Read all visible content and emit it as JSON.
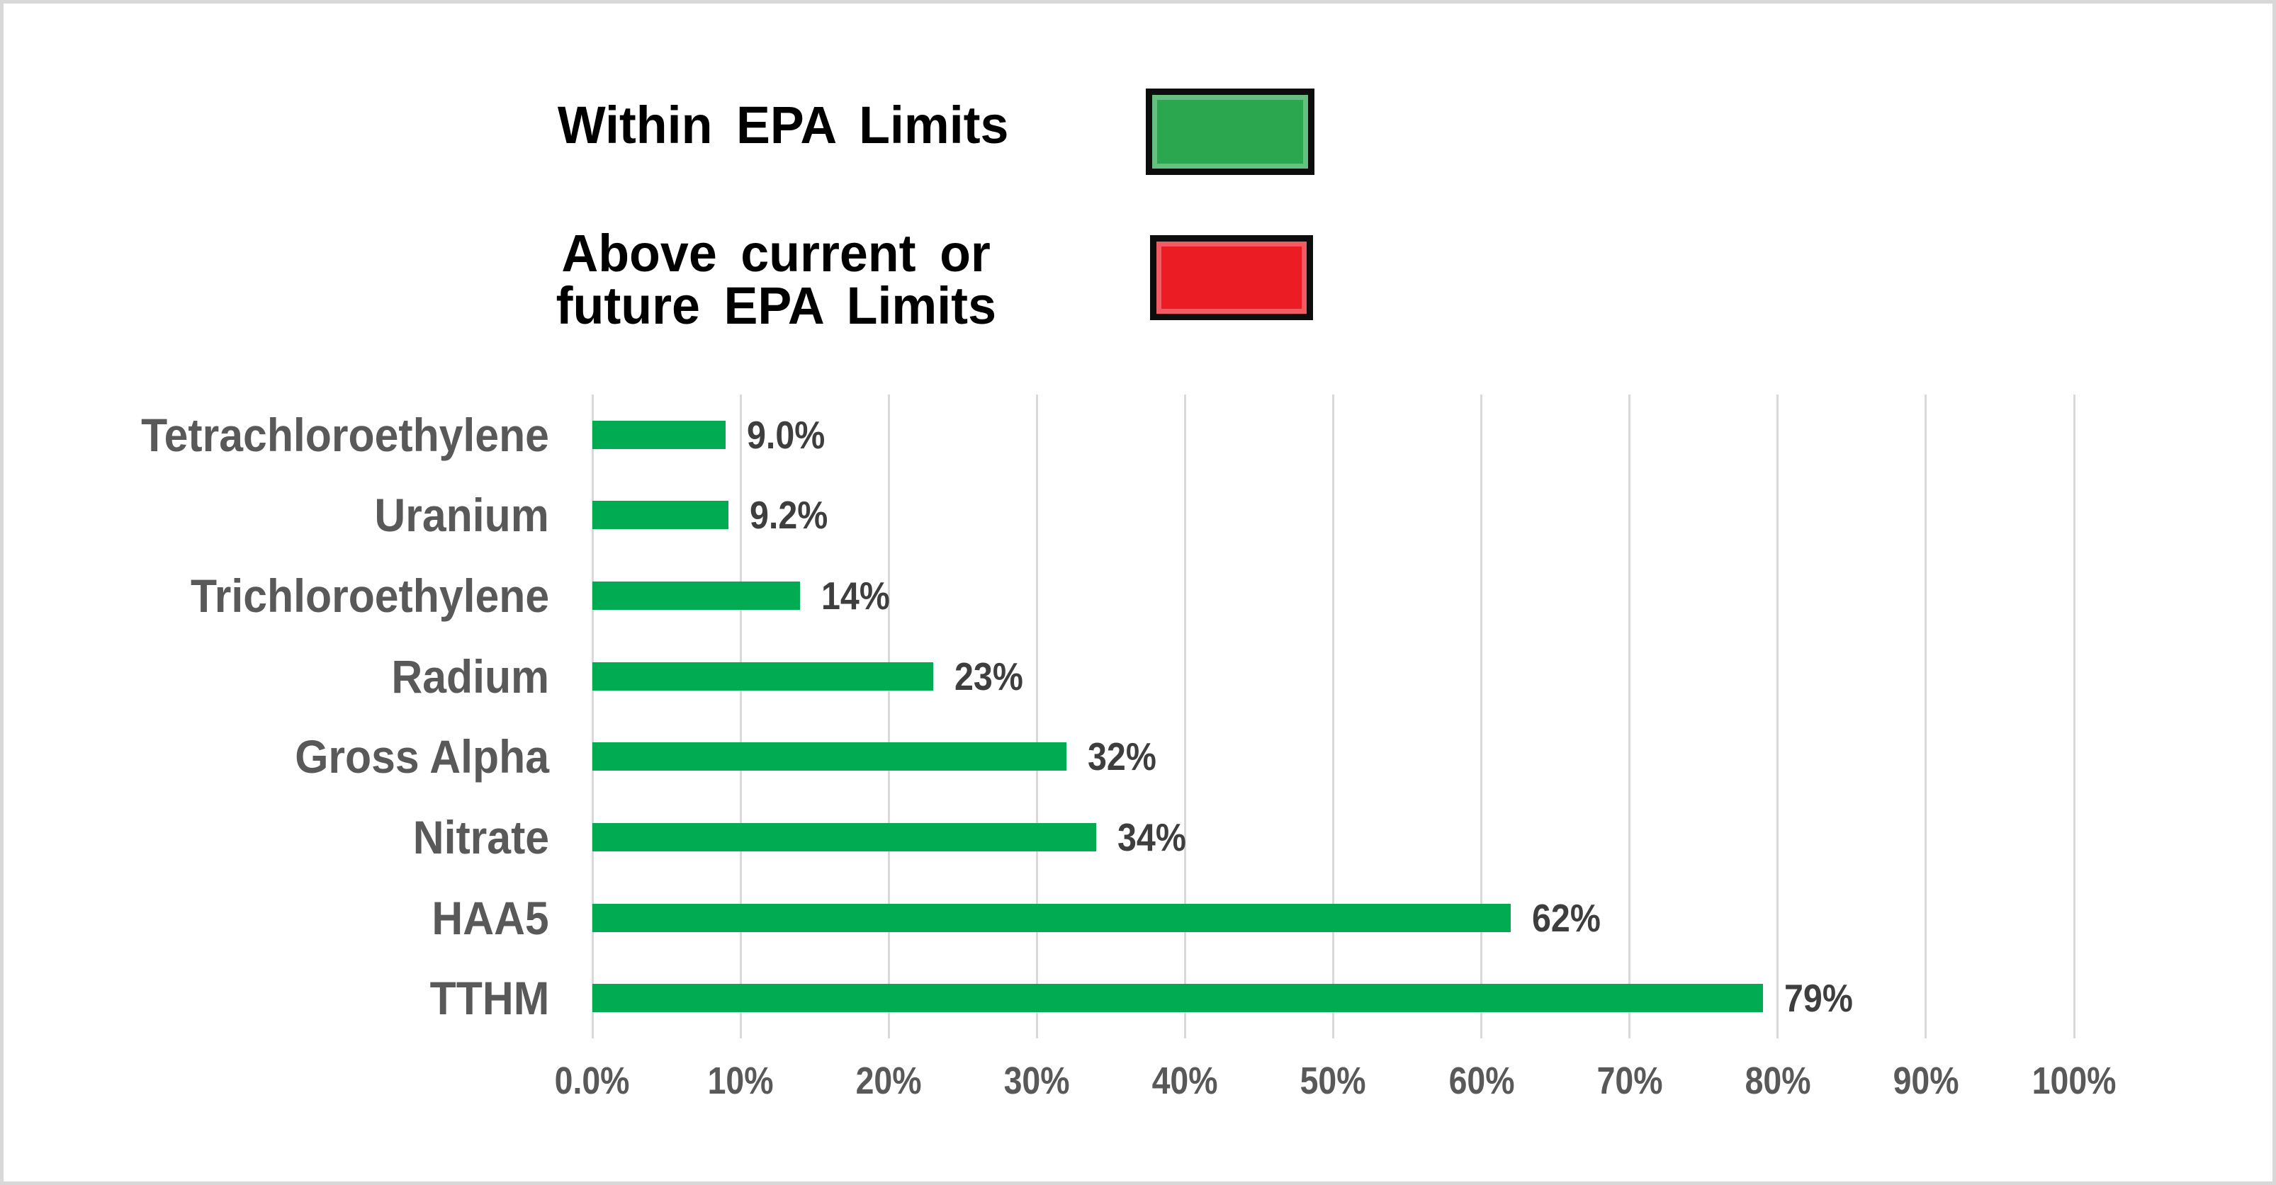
{
  "chart_data": {
    "type": "bar",
    "orientation": "horizontal",
    "title": "",
    "categories": [
      "Tetrachloroethylene",
      "Uranium",
      "Trichloroethylene",
      "Radium",
      "Gross Alpha",
      "Nitrate",
      "HAA5",
      "TTHM"
    ],
    "values": [
      9.0,
      9.2,
      14,
      23,
      32,
      34,
      62,
      79
    ],
    "data_labels": [
      "9.0%",
      "9.2%",
      "14%",
      "23%",
      "32%",
      "34%",
      "62%",
      "79%"
    ],
    "x_ticks": [
      "0.0%",
      "10%",
      "20%",
      "30%",
      "40%",
      "50%",
      "60%",
      "70%",
      "80%",
      "90%",
      "100%"
    ],
    "xlim": [
      0,
      100
    ],
    "grid": true,
    "grid_color": "#d9d9d9",
    "bar_color": "#00ab51",
    "legend_position": "top"
  },
  "legend": {
    "items": [
      {
        "id": "within-epa-limits",
        "label": "Within EPA Limits",
        "lines": [
          "Within EPA Limits"
        ],
        "color": "#2ba84f",
        "border_color": "#0d0d0d"
      },
      {
        "id": "above-epa-limits",
        "label": "Above current or future EPA Limits",
        "lines": [
          "Above current or",
          "future EPA Limits"
        ],
        "color": "#ec1c24",
        "border_color": "#0d0d0d"
      }
    ]
  }
}
